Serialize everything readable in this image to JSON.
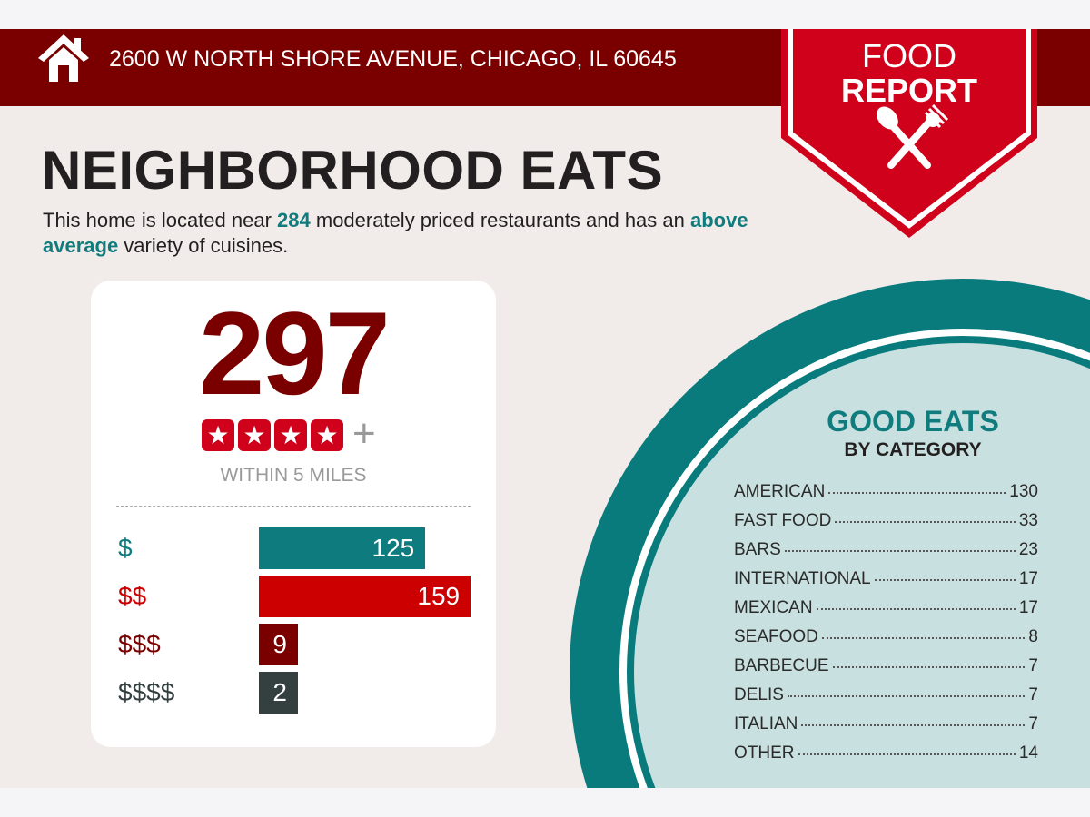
{
  "header": {
    "address": "2600 W NORTH SHORE AVENUE, CHICAGO, IL 60645",
    "icon": "house-icon"
  },
  "badge": {
    "line1": "FOOD",
    "line2": "REPORT",
    "icon": "spoon-fork-icon"
  },
  "title": "NEIGHBORHOOD EATS",
  "description": {
    "part1": "This home is located near ",
    "count": "284",
    "part2": " moderately priced restaurants and has an ",
    "variety": "above average",
    "part3": " variety of cuisines."
  },
  "summary": {
    "total": "297",
    "stars": 4,
    "stars_suffix": "+",
    "within": "WITHIN 5 MILES"
  },
  "chart_data": {
    "type": "bar",
    "orientation": "horizontal",
    "categories": [
      "$",
      "$$",
      "$$$",
      "$$$$"
    ],
    "values": [
      125,
      159,
      9,
      2
    ],
    "colors": [
      "#0e7c7e",
      "#cc0000",
      "#7a0000",
      "#34403f"
    ]
  },
  "good_eats": {
    "title": "GOOD EATS",
    "subtitle": "BY CATEGORY",
    "items": [
      {
        "label": "AMERICAN",
        "value": "130"
      },
      {
        "label": "FAST FOOD",
        "value": "33"
      },
      {
        "label": "BARS",
        "value": "23"
      },
      {
        "label": "INTERNATIONAL",
        "value": "17"
      },
      {
        "label": "MEXICAN",
        "value": "17"
      },
      {
        "label": "SEAFOOD",
        "value": "8"
      },
      {
        "label": "BARBECUE",
        "value": "7"
      },
      {
        "label": "DELIS",
        "value": "7"
      },
      {
        "label": "ITALIAN",
        "value": "7"
      },
      {
        "label": "OTHER",
        "value": "14"
      }
    ]
  },
  "colors": {
    "dark_red": "#7a0000",
    "red": "#cc0000",
    "teal": "#0e7c7e",
    "light_teal": "#c8e0df",
    "background": "#f1ece9"
  }
}
